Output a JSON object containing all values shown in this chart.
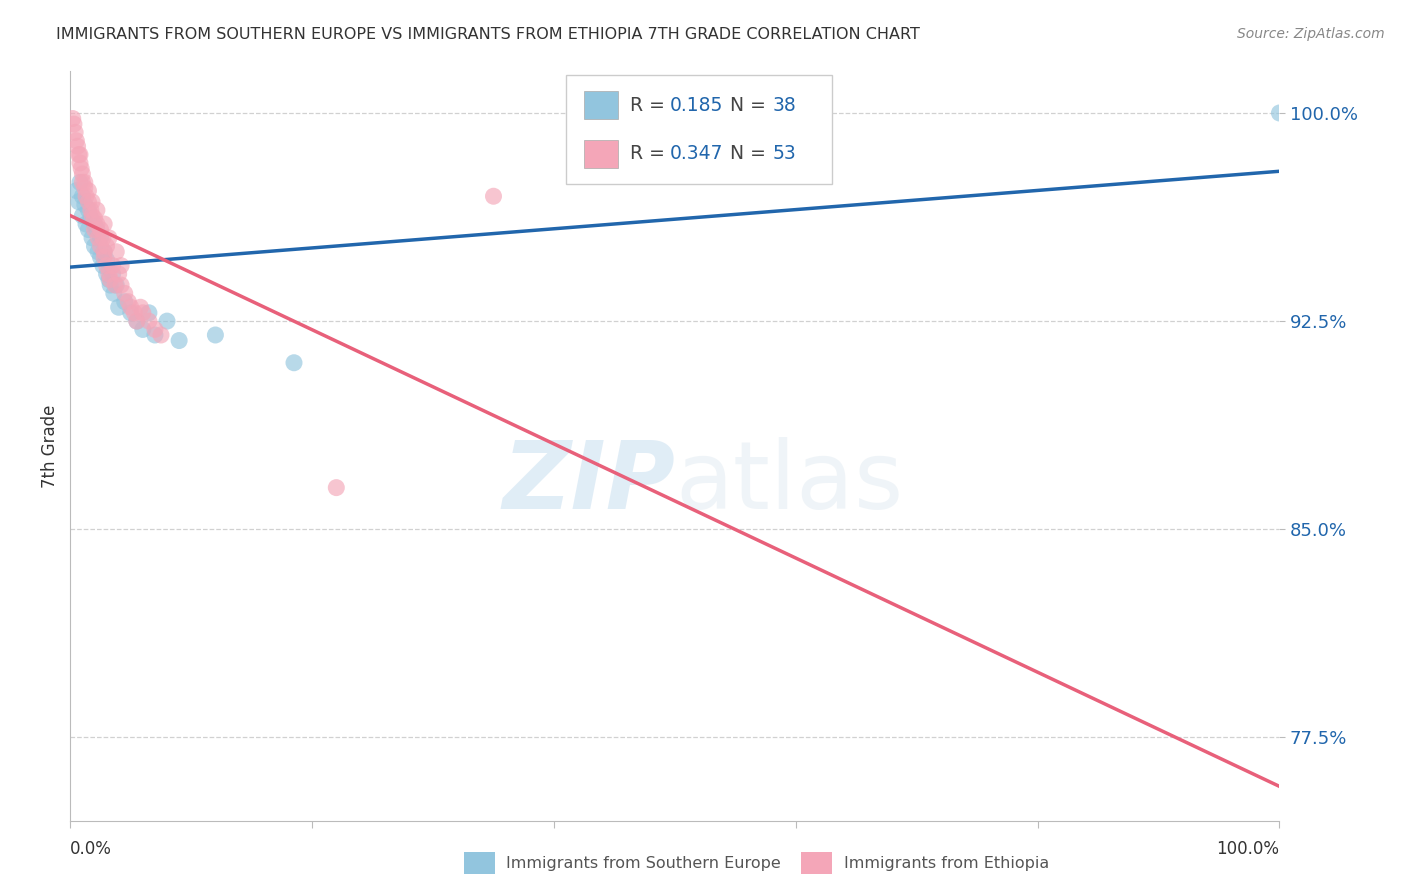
{
  "title": "IMMIGRANTS FROM SOUTHERN EUROPE VS IMMIGRANTS FROM ETHIOPIA 7TH GRADE CORRELATION CHART",
  "source": "Source: ZipAtlas.com",
  "ylabel": "7th Grade",
  "ytick_vals": [
    0.775,
    0.85,
    0.925,
    1.0
  ],
  "ytick_labels": [
    "77.5%",
    "85.0%",
    "92.5%",
    "100.0%"
  ],
  "xmin": 0.0,
  "xmax": 1.0,
  "ymin": 0.745,
  "ymax": 1.015,
  "legend_blue_r": "0.185",
  "legend_blue_n": "38",
  "legend_pink_r": "0.347",
  "legend_pink_n": "53",
  "legend_label_blue": "Immigrants from Southern Europe",
  "legend_label_pink": "Immigrants from Ethiopia",
  "blue_color": "#92c5de",
  "pink_color": "#f4a6b8",
  "trendline_blue_color": "#2166ac",
  "trendline_pink_color": "#e8607a",
  "watermark_zip": "ZIP",
  "watermark_atlas": "atlas",
  "blue_scatter_x": [
    0.005,
    0.007,
    0.008,
    0.01,
    0.01,
    0.012,
    0.013,
    0.015,
    0.015,
    0.017,
    0.018,
    0.02,
    0.02,
    0.022,
    0.023,
    0.025,
    0.025,
    0.027,
    0.028,
    0.03,
    0.03,
    0.032,
    0.033,
    0.035,
    0.036,
    0.038,
    0.04,
    0.045,
    0.05,
    0.055,
    0.06,
    0.065,
    0.07,
    0.08,
    0.09,
    0.12,
    0.185,
    1.0
  ],
  "blue_scatter_y": [
    0.972,
    0.968,
    0.975,
    0.963,
    0.97,
    0.967,
    0.96,
    0.965,
    0.958,
    0.962,
    0.955,
    0.96,
    0.952,
    0.958,
    0.95,
    0.955,
    0.948,
    0.945,
    0.95,
    0.942,
    0.947,
    0.94,
    0.938,
    0.942,
    0.935,
    0.938,
    0.93,
    0.932,
    0.928,
    0.925,
    0.922,
    0.928,
    0.92,
    0.925,
    0.918,
    0.92,
    0.91,
    1.0
  ],
  "pink_scatter_x": [
    0.002,
    0.003,
    0.004,
    0.005,
    0.006,
    0.007,
    0.008,
    0.009,
    0.01,
    0.01,
    0.012,
    0.013,
    0.015,
    0.015,
    0.017,
    0.018,
    0.02,
    0.02,
    0.022,
    0.023,
    0.025,
    0.025,
    0.027,
    0.028,
    0.028,
    0.03,
    0.03,
    0.032,
    0.033,
    0.035,
    0.037,
    0.04,
    0.042,
    0.045,
    0.048,
    0.05,
    0.053,
    0.055,
    0.058,
    0.06,
    0.065,
    0.07,
    0.075,
    0.008,
    0.012,
    0.018,
    0.022,
    0.028,
    0.032,
    0.038,
    0.042,
    0.22,
    0.35
  ],
  "pink_scatter_y": [
    0.998,
    0.996,
    0.993,
    0.99,
    0.988,
    0.985,
    0.982,
    0.98,
    0.978,
    0.975,
    0.973,
    0.97,
    0.972,
    0.968,
    0.965,
    0.963,
    0.962,
    0.958,
    0.96,
    0.955,
    0.958,
    0.952,
    0.955,
    0.95,
    0.948,
    0.952,
    0.945,
    0.942,
    0.94,
    0.945,
    0.938,
    0.942,
    0.938,
    0.935,
    0.932,
    0.93,
    0.928,
    0.925,
    0.93,
    0.928,
    0.925,
    0.922,
    0.92,
    0.985,
    0.975,
    0.968,
    0.965,
    0.96,
    0.955,
    0.95,
    0.945,
    0.865,
    0.97
  ]
}
